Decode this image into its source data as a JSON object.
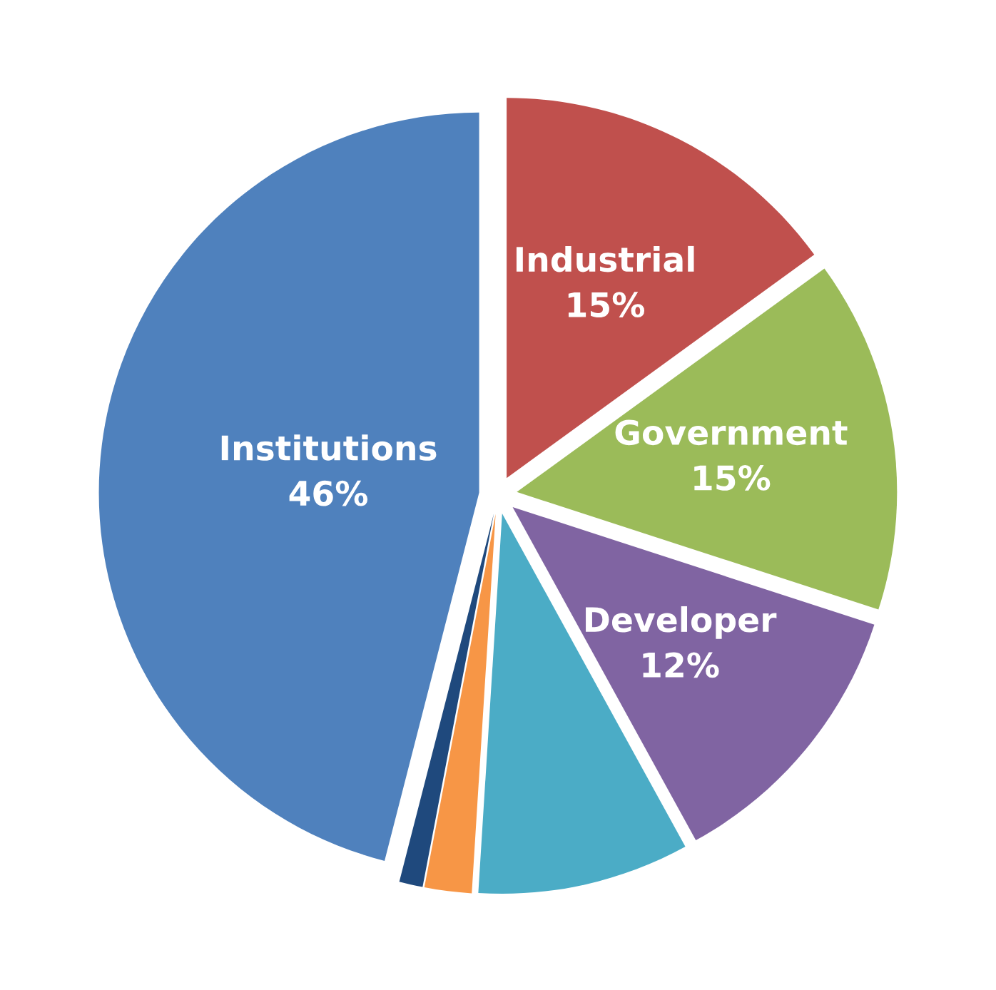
{
  "chart_data": {
    "type": "pie",
    "categories": [
      "Industrial",
      "Government",
      "Developer",
      null,
      null,
      null,
      "Institutions"
    ],
    "values": [
      15,
      15,
      12,
      9,
      2,
      1,
      46
    ],
    "value_labels": [
      "15%",
      "15%",
      "12%",
      null,
      null,
      null,
      "46%"
    ],
    "colors": [
      "#c0504d",
      "#9bbb59",
      "#8064a2",
      "#4bacc6",
      "#f79646",
      "#1f497d",
      "#4f81bd"
    ],
    "legend": false
  }
}
